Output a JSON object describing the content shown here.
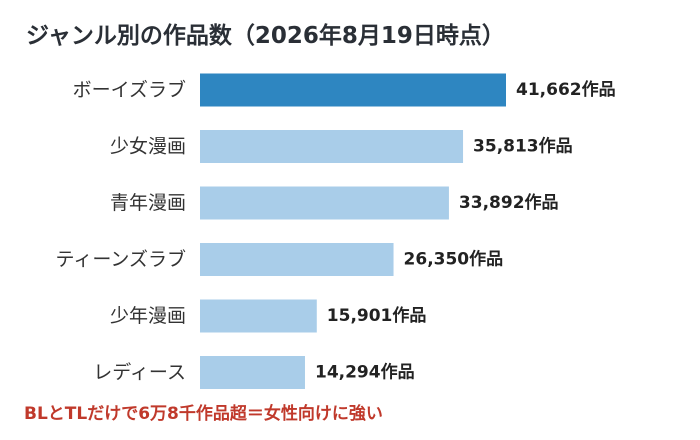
{
  "chart_data": {
    "type": "bar",
    "orientation": "horizontal",
    "title": "ジャンル別の作品数（2026年8月19日時点）",
    "categories": [
      "ボーイズラブ",
      "少女漫画",
      "青年漫画",
      "ティーンズラブ",
      "少年漫画",
      "レディース"
    ],
    "values": [
      41662,
      35813,
      33892,
      26350,
      15901,
      14294
    ],
    "value_labels": [
      "41,662作品",
      "35,813作品",
      "33,892作品",
      "26,350作品",
      "15,901作品",
      "14,294作品"
    ],
    "xlabel": "",
    "ylabel": "",
    "xlim": [
      0,
      50000
    ],
    "grid": false,
    "legend": "none",
    "annotation": "BLとTLだけで6万8千作品超＝女性向けに強い"
  },
  "colors": {
    "highlight_bar": "#2e86c1",
    "bar": "#a9cde9",
    "annotation_text": "#c0392b",
    "title_text": "#2a2f36"
  }
}
